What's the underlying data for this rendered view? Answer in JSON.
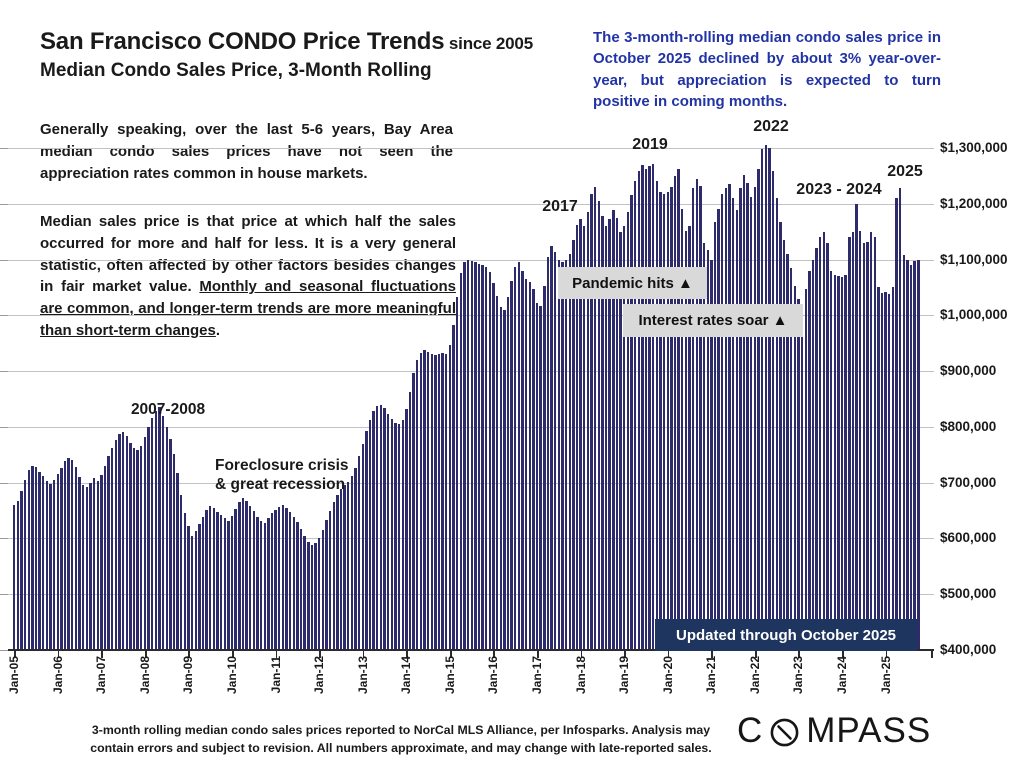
{
  "header": {
    "title_main": "San Francisco CONDO Price Trends",
    "title_since": " since 2005",
    "subtitle": "Median Condo Sales Price, 3-Month Rolling"
  },
  "note_blue": "The 3-month-rolling median condo sales price in October 2025 declined by about 3% year-over-year, but appreciation is expected to turn positive in coming months.",
  "para1": "Generally speaking, over the last 5-6 years, Bay Area median condo sales prices have not seen the appreciation rates common in house markets.",
  "para2_normal": "Median sales price is that price at which half the sales occurred for more and half for less. It is a very general statistic, often affected by other factors besides changes in fair market value. ",
  "para2_underlined": "Monthly and seasonal fluctuations are common, and longer-term trends are more meaningful than short-term changes",
  "para2_end": ".",
  "footer": {
    "line1": "3-month rolling median condo sales prices reported to NorCal MLS Alliance, per Infosparks. Analysis may",
    "line2": "contain errors and subject to revision. All numbers approximate, and may change with late-reported sales."
  },
  "brand": {
    "left": "C",
    "right": "MPASS",
    "o_icon": "compass-needle-o"
  },
  "chart_data": {
    "type": "bar",
    "title": "San Francisco Median Condo Sales Price, 3-Month Rolling, since 2005",
    "unit": "USD",
    "start_month": "Jan-05",
    "end_month": "Oct-25",
    "ylim": [
      400000,
      1300000
    ],
    "grid": true,
    "y_tick_values": [
      400000,
      500000,
      600000,
      700000,
      800000,
      900000,
      1000000,
      1100000,
      1200000,
      1300000
    ],
    "y_tick_labels": [
      "$400,000",
      "$500,000",
      "$600,000",
      "$700,000",
      "$800,000",
      "$900,000",
      "$1,000,000",
      "$1,100,000",
      "$1,200,000",
      "$1,300,000"
    ],
    "x_tick_labels": [
      "Jan-05",
      "Jan-06",
      "Jan-07",
      "Jan-08",
      "Jan-09",
      "Jan-10",
      "Jan-11",
      "Jan-12",
      "Jan-13",
      "Jan-14",
      "Jan-15",
      "Jan-16",
      "Jan-17",
      "Jan-18",
      "Jan-19",
      "Jan-20",
      "Jan-21",
      "Jan-22",
      "Jan-23",
      "Jan-24",
      "Jan-25"
    ],
    "values": [
      660000,
      668000,
      685000,
      705000,
      722000,
      730000,
      728000,
      720000,
      712000,
      703000,
      698000,
      705000,
      716000,
      726000,
      738000,
      745000,
      740000,
      728000,
      710000,
      695000,
      692000,
      700000,
      708000,
      703000,
      714000,
      729000,
      748000,
      763000,
      776000,
      787000,
      790000,
      783000,
      771000,
      762000,
      758000,
      766000,
      781000,
      800000,
      816000,
      828000,
      835000,
      820000,
      799000,
      778000,
      752000,
      718000,
      678000,
      645000,
      622000,
      605000,
      613000,
      626000,
      639000,
      651000,
      658000,
      654000,
      648000,
      642000,
      637000,
      632000,
      641000,
      653000,
      665000,
      672000,
      667000,
      659000,
      649000,
      639000,
      631000,
      628000,
      636000,
      645000,
      651000,
      656000,
      660000,
      654000,
      647000,
      639000,
      629000,
      617000,
      604000,
      594000,
      589000,
      592000,
      601000,
      616000,
      633000,
      650000,
      666000,
      678000,
      688000,
      696000,
      702000,
      712000,
      726000,
      748000,
      770000,
      792000,
      813000,
      828000,
      838000,
      840000,
      834000,
      824000,
      814000,
      807000,
      805000,
      813000,
      832000,
      862000,
      896000,
      920000,
      932000,
      938000,
      935000,
      930000,
      928000,
      930000,
      932000,
      930000,
      946000,
      982000,
      1032000,
      1076000,
      1095000,
      1100000,
      1098000,
      1095000,
      1092000,
      1090000,
      1087000,
      1078000,
      1058000,
      1034000,
      1015000,
      1010000,
      1032000,
      1062000,
      1086000,
      1095000,
      1080000,
      1066000,
      1060000,
      1048000,
      1022000,
      1016000,
      1052000,
      1105000,
      1124000,
      1114000,
      1100000,
      1096000,
      1100000,
      1110000,
      1135000,
      1162000,
      1172000,
      1160000,
      1185000,
      1218000,
      1230000,
      1205000,
      1178000,
      1160000,
      1172000,
      1188000,
      1175000,
      1150000,
      1160000,
      1185000,
      1215000,
      1240000,
      1258000,
      1270000,
      1262000,
      1268000,
      1272000,
      1240000,
      1222000,
      1218000,
      1222000,
      1230000,
      1250000,
      1262000,
      1190000,
      1152000,
      1160000,
      1228000,
      1245000,
      1232000,
      1130000,
      1118000,
      1100000,
      1168000,
      1190000,
      1218000,
      1228000,
      1235000,
      1210000,
      1188000,
      1228000,
      1252000,
      1238000,
      1212000,
      1230000,
      1262000,
      1298000,
      1305000,
      1300000,
      1258000,
      1210000,
      1168000,
      1135000,
      1110000,
      1085000,
      1052000,
      1030000,
      1020000,
      1048000,
      1080000,
      1100000,
      1120000,
      1140000,
      1150000,
      1130000,
      1080000,
      1072000,
      1070000,
      1068000,
      1072000,
      1140000,
      1150000,
      1200000,
      1152000,
      1130000,
      1132000,
      1150000,
      1140000,
      1050000,
      1040000,
      1042000,
      1038000,
      1050000,
      1210000,
      1228000,
      1108000,
      1100000,
      1090000,
      1098000,
      1100000
    ],
    "annotations": {
      "y2007": {
        "text": "2007-2008"
      },
      "crisis": {
        "text": "Foreclosure crisis\n& great recession"
      },
      "y2017": {
        "text": "2017"
      },
      "y2019": {
        "text": "2019"
      },
      "y2022": {
        "text": "2022"
      },
      "y2023": {
        "text": "2023 - 2024"
      },
      "y2025": {
        "text": "2025"
      },
      "pandemic": {
        "text": "Pandemic hits ▲"
      },
      "rates": {
        "text": "Interest rates soar ▲"
      },
      "updated": {
        "text": "Updated through October 2025"
      }
    },
    "colors": {
      "bar": "#2E2B6D",
      "gridline": "#C3C3C3",
      "callout_bg": "#D9D9D9",
      "updated_box_bg": "#1E3560",
      "blue_text": "#2233A6"
    },
    "legend": null
  }
}
